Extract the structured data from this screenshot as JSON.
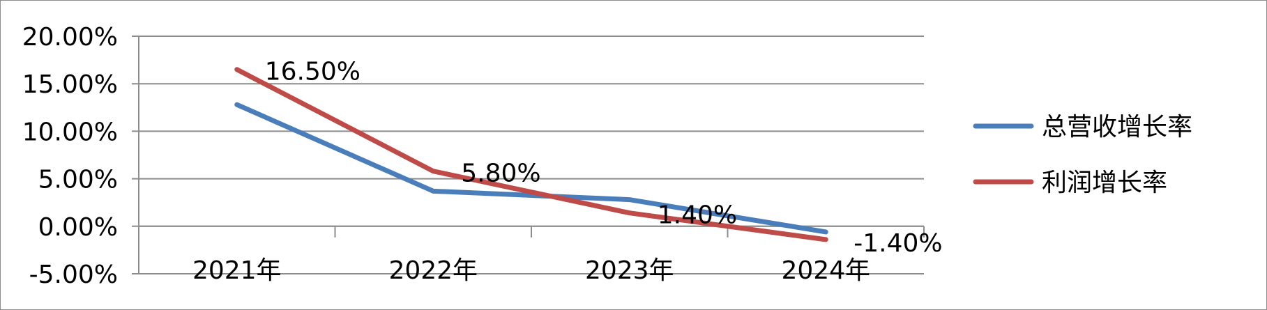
{
  "chart_data": {
    "type": "line",
    "categories": [
      "2021年",
      "2022年",
      "2023年",
      "2024年"
    ],
    "series": [
      {
        "name": "总营收增长率",
        "color": "#4a7ebb",
        "values": [
          12.8,
          3.7,
          2.8,
          -0.6
        ],
        "labels": [
          "",
          "",
          "",
          ""
        ]
      },
      {
        "name": "利润增长率",
        "color": "#be4b48",
        "values": [
          16.5,
          5.8,
          1.4,
          -1.4
        ],
        "labels": [
          "16.50%",
          "5.80%",
          "1.40%",
          "-1.40%"
        ]
      }
    ],
    "y_ticks": [
      "20.00%",
      "15.00%",
      "10.00%",
      "5.00%",
      "0.00%",
      "-5.00%"
    ],
    "ylim": [
      -5,
      20
    ],
    "grid": true,
    "legend": "right"
  }
}
